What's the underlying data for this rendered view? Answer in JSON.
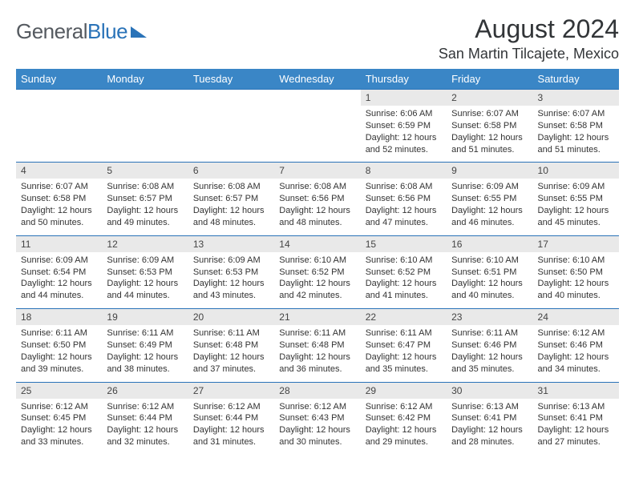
{
  "brand": {
    "part1": "General",
    "part2": "Blue"
  },
  "title": "August 2024",
  "subtitle": "San Martin Tilcajete, Mexico",
  "dayHeaders": [
    "Sunday",
    "Monday",
    "Tuesday",
    "Wednesday",
    "Thursday",
    "Friday",
    "Saturday"
  ],
  "colors": {
    "headerBg": "#3a86c6",
    "headerText": "#ffffff",
    "dayStripBg": "#e9e9e9",
    "dayStripBorder": "#2a73b8",
    "bodyText": "#333333",
    "titleText": "#323538"
  },
  "typography": {
    "titleSize": 32,
    "subtitleSize": 18,
    "headerSize": 13,
    "dayNumSize": 12,
    "detailSize": 11
  },
  "weeks": [
    [
      null,
      null,
      null,
      null,
      {
        "n": "1",
        "sunrise": "6:06 AM",
        "sunset": "6:59 PM",
        "daylight": "12 hours and 52 minutes."
      },
      {
        "n": "2",
        "sunrise": "6:07 AM",
        "sunset": "6:58 PM",
        "daylight": "12 hours and 51 minutes."
      },
      {
        "n": "3",
        "sunrise": "6:07 AM",
        "sunset": "6:58 PM",
        "daylight": "12 hours and 51 minutes."
      }
    ],
    [
      {
        "n": "4",
        "sunrise": "6:07 AM",
        "sunset": "6:58 PM",
        "daylight": "12 hours and 50 minutes."
      },
      {
        "n": "5",
        "sunrise": "6:08 AM",
        "sunset": "6:57 PM",
        "daylight": "12 hours and 49 minutes."
      },
      {
        "n": "6",
        "sunrise": "6:08 AM",
        "sunset": "6:57 PM",
        "daylight": "12 hours and 48 minutes."
      },
      {
        "n": "7",
        "sunrise": "6:08 AM",
        "sunset": "6:56 PM",
        "daylight": "12 hours and 48 minutes."
      },
      {
        "n": "8",
        "sunrise": "6:08 AM",
        "sunset": "6:56 PM",
        "daylight": "12 hours and 47 minutes."
      },
      {
        "n": "9",
        "sunrise": "6:09 AM",
        "sunset": "6:55 PM",
        "daylight": "12 hours and 46 minutes."
      },
      {
        "n": "10",
        "sunrise": "6:09 AM",
        "sunset": "6:55 PM",
        "daylight": "12 hours and 45 minutes."
      }
    ],
    [
      {
        "n": "11",
        "sunrise": "6:09 AM",
        "sunset": "6:54 PM",
        "daylight": "12 hours and 44 minutes."
      },
      {
        "n": "12",
        "sunrise": "6:09 AM",
        "sunset": "6:53 PM",
        "daylight": "12 hours and 44 minutes."
      },
      {
        "n": "13",
        "sunrise": "6:09 AM",
        "sunset": "6:53 PM",
        "daylight": "12 hours and 43 minutes."
      },
      {
        "n": "14",
        "sunrise": "6:10 AM",
        "sunset": "6:52 PM",
        "daylight": "12 hours and 42 minutes."
      },
      {
        "n": "15",
        "sunrise": "6:10 AM",
        "sunset": "6:52 PM",
        "daylight": "12 hours and 41 minutes."
      },
      {
        "n": "16",
        "sunrise": "6:10 AM",
        "sunset": "6:51 PM",
        "daylight": "12 hours and 40 minutes."
      },
      {
        "n": "17",
        "sunrise": "6:10 AM",
        "sunset": "6:50 PM",
        "daylight": "12 hours and 40 minutes."
      }
    ],
    [
      {
        "n": "18",
        "sunrise": "6:11 AM",
        "sunset": "6:50 PM",
        "daylight": "12 hours and 39 minutes."
      },
      {
        "n": "19",
        "sunrise": "6:11 AM",
        "sunset": "6:49 PM",
        "daylight": "12 hours and 38 minutes."
      },
      {
        "n": "20",
        "sunrise": "6:11 AM",
        "sunset": "6:48 PM",
        "daylight": "12 hours and 37 minutes."
      },
      {
        "n": "21",
        "sunrise": "6:11 AM",
        "sunset": "6:48 PM",
        "daylight": "12 hours and 36 minutes."
      },
      {
        "n": "22",
        "sunrise": "6:11 AM",
        "sunset": "6:47 PM",
        "daylight": "12 hours and 35 minutes."
      },
      {
        "n": "23",
        "sunrise": "6:11 AM",
        "sunset": "6:46 PM",
        "daylight": "12 hours and 35 minutes."
      },
      {
        "n": "24",
        "sunrise": "6:12 AM",
        "sunset": "6:46 PM",
        "daylight": "12 hours and 34 minutes."
      }
    ],
    [
      {
        "n": "25",
        "sunrise": "6:12 AM",
        "sunset": "6:45 PM",
        "daylight": "12 hours and 33 minutes."
      },
      {
        "n": "26",
        "sunrise": "6:12 AM",
        "sunset": "6:44 PM",
        "daylight": "12 hours and 32 minutes."
      },
      {
        "n": "27",
        "sunrise": "6:12 AM",
        "sunset": "6:44 PM",
        "daylight": "12 hours and 31 minutes."
      },
      {
        "n": "28",
        "sunrise": "6:12 AM",
        "sunset": "6:43 PM",
        "daylight": "12 hours and 30 minutes."
      },
      {
        "n": "29",
        "sunrise": "6:12 AM",
        "sunset": "6:42 PM",
        "daylight": "12 hours and 29 minutes."
      },
      {
        "n": "30",
        "sunrise": "6:13 AM",
        "sunset": "6:41 PM",
        "daylight": "12 hours and 28 minutes."
      },
      {
        "n": "31",
        "sunrise": "6:13 AM",
        "sunset": "6:41 PM",
        "daylight": "12 hours and 27 minutes."
      }
    ]
  ],
  "labels": {
    "sunrise": "Sunrise: ",
    "sunset": "Sunset: ",
    "daylight": "Daylight: "
  }
}
